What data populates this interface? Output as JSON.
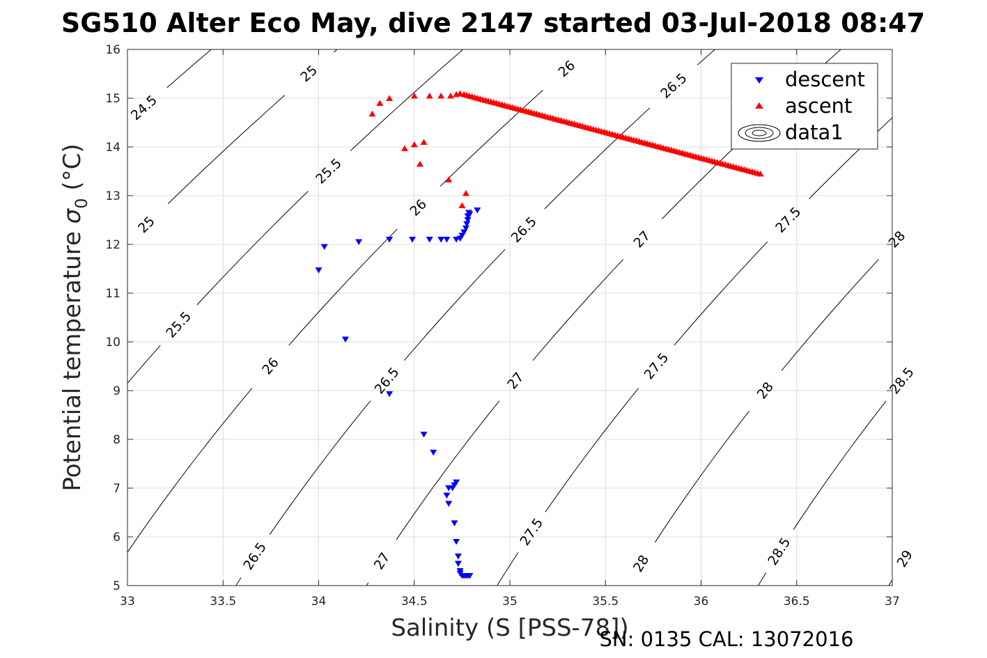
{
  "chart_data": {
    "type": "scatter",
    "title": "SG510 Alter Eco May, dive 2147 started 03-Jul-2018 08:47",
    "xlabel": "Salinity (S [PSS-78])",
    "ylabel_main": "Potential temperature ",
    "ylabel_sigma": "σ",
    "ylabel_sub": "0",
    "ylabel_unit": " (°C)",
    "footer": "SN: 0135  CAL: 13072016",
    "xlim": [
      33,
      37
    ],
    "ylim": [
      5,
      16
    ],
    "xticks": [
      33,
      33.5,
      34,
      34.5,
      35,
      35.5,
      36,
      36.5,
      37
    ],
    "yticks": [
      5,
      6,
      7,
      8,
      9,
      10,
      11,
      12,
      13,
      14,
      15,
      16
    ],
    "grid": true,
    "legend_position": "top-right",
    "legend": [
      "descent",
      "ascent",
      "data1"
    ],
    "series": [
      {
        "name": "descent",
        "marker": "triangle-down",
        "color": "#0000ff",
        "points": [
          [
            34.0,
            11.47
          ],
          [
            34.03,
            11.95
          ],
          [
            34.14,
            10.05
          ],
          [
            34.21,
            12.05
          ],
          [
            34.37,
            12.1
          ],
          [
            34.37,
            8.93
          ],
          [
            34.49,
            12.1
          ],
          [
            34.55,
            8.1
          ],
          [
            34.58,
            12.1
          ],
          [
            34.6,
            7.73
          ],
          [
            34.64,
            12.1
          ],
          [
            34.67,
            12.1
          ],
          [
            34.67,
            6.85
          ],
          [
            34.68,
            6.68
          ],
          [
            34.68,
            7.0
          ],
          [
            34.7,
            7.0
          ],
          [
            34.71,
            7.06
          ],
          [
            34.72,
            7.12
          ],
          [
            34.71,
            6.28
          ],
          [
            34.72,
            12.1
          ],
          [
            34.72,
            5.9
          ],
          [
            34.73,
            5.6
          ],
          [
            34.73,
            5.45
          ],
          [
            34.74,
            5.3
          ],
          [
            34.74,
            5.25
          ],
          [
            34.75,
            5.2
          ],
          [
            34.76,
            5.2
          ],
          [
            34.77,
            5.2
          ],
          [
            34.78,
            5.2
          ],
          [
            34.79,
            5.2
          ],
          [
            34.74,
            12.12
          ],
          [
            34.75,
            12.18
          ],
          [
            34.76,
            12.25
          ],
          [
            34.77,
            12.33
          ],
          [
            34.775,
            12.42
          ],
          [
            34.78,
            12.5
          ],
          [
            34.78,
            12.58
          ],
          [
            34.785,
            12.65
          ],
          [
            34.79,
            12.62
          ],
          [
            34.83,
            12.7
          ]
        ]
      },
      {
        "name": "ascent",
        "marker": "triangle-up",
        "color": "#ff0000",
        "points": [
          [
            34.28,
            14.68
          ],
          [
            34.32,
            14.9
          ],
          [
            34.37,
            15.0
          ],
          [
            34.45,
            13.97
          ],
          [
            34.5,
            14.05
          ],
          [
            34.53,
            13.65
          ],
          [
            34.55,
            14.1
          ],
          [
            34.5,
            15.05
          ],
          [
            34.58,
            15.05
          ],
          [
            34.64,
            15.05
          ],
          [
            34.68,
            13.33
          ],
          [
            34.75,
            12.8
          ],
          [
            34.77,
            13.05
          ],
          [
            34.69,
            15.05
          ],
          [
            34.72,
            15.08
          ],
          [
            34.74,
            15.1
          ],
          [
            34.76,
            15.08
          ],
          [
            36.31,
            13.45
          ]
        ]
      }
    ],
    "contours": [
      {
        "level": "24.5",
        "labels": [
          [
            33.15,
            14.8
          ]
        ]
      },
      {
        "level": "25",
        "labels": [
          [
            33.1,
            12.4
          ],
          [
            33.89,
            15.5
          ]
        ]
      },
      {
        "level": "25.5",
        "labels": [
          [
            33.23,
            10.35
          ],
          [
            33.98,
            13.5
          ]
        ]
      },
      {
        "level": "26",
        "labels": [
          [
            33.67,
            9.5
          ],
          [
            34.41,
            12.75
          ],
          [
            35.2,
            15.6
          ]
        ]
      },
      {
        "level": "26.5",
        "labels": [
          [
            33.61,
            5.6
          ],
          [
            34.25,
            9.2
          ],
          [
            34.95,
            12.3
          ],
          [
            35.76,
            15.25
          ]
        ]
      },
      {
        "level": "27",
        "labels": [
          [
            34.23,
            5.5
          ],
          [
            34.85,
            9.2
          ],
          [
            35.57,
            12.1
          ]
        ]
      },
      {
        "level": "27.5",
        "labels": [
          [
            34.85,
            6.1
          ],
          [
            35.6,
            9.5
          ],
          [
            36.35,
            12.5
          ]
        ]
      },
      {
        "level": "28",
        "labels": [
          [
            35.48,
            5.45
          ],
          [
            36.12,
            9.0
          ],
          [
            36.84,
            12.1
          ]
        ]
      },
      {
        "level": "28.5",
        "labels": [
          [
            36.14,
            5.7
          ],
          [
            36.75,
            9.2
          ]
        ]
      },
      {
        "level": "29",
        "labels": [
          [
            36.77,
            5.55
          ]
        ]
      }
    ]
  }
}
